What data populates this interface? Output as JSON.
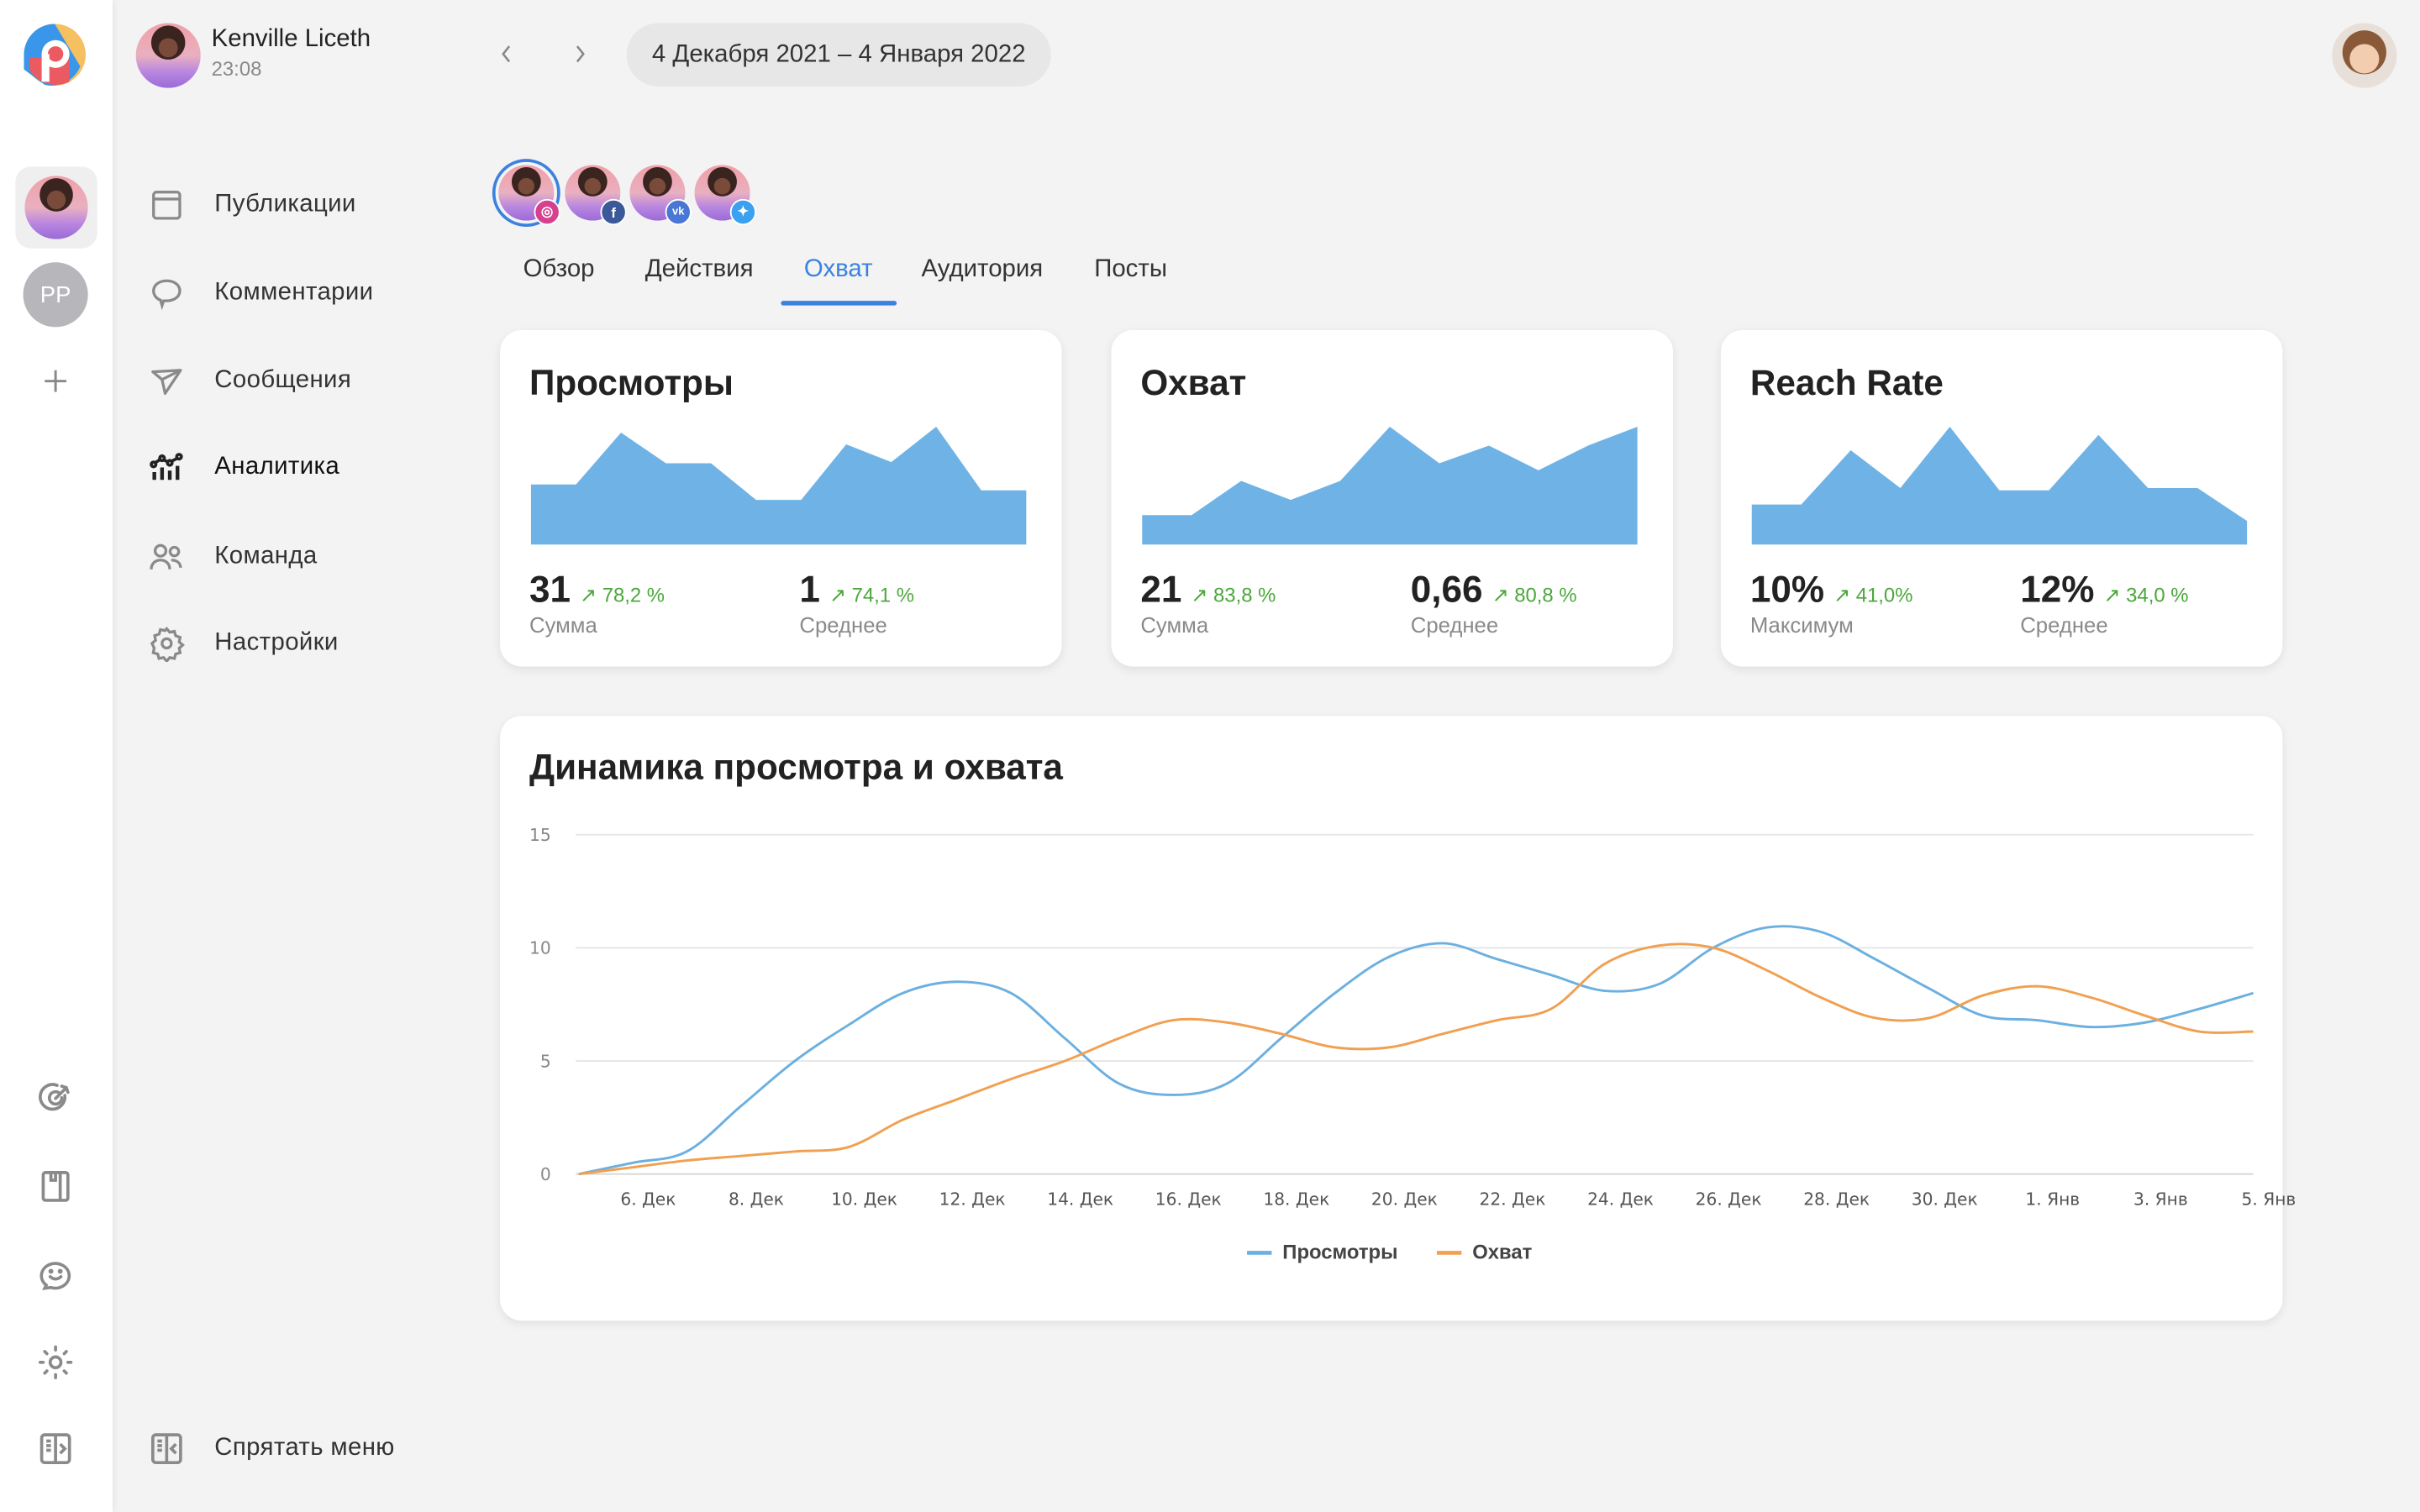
{
  "header": {
    "user_name": "Kenville Liceth",
    "time": "23:08",
    "date_range": "4 Декабря 2021 – 4 Января 2022"
  },
  "rail": {
    "accounts": [
      {
        "type": "avatar"
      },
      {
        "initials": "PP"
      }
    ],
    "bottom_icons": [
      "target-icon",
      "book-icon",
      "smile-chat-icon",
      "sun-icon",
      "expand-menu-icon"
    ]
  },
  "sidebar": {
    "items": [
      {
        "label": "Публикации",
        "icon": "calendar-window-icon"
      },
      {
        "label": "Комментарии",
        "icon": "comment-icon"
      },
      {
        "label": "Сообщения",
        "icon": "send-icon"
      },
      {
        "label": "Аналитика",
        "icon": "analytics-icon",
        "active": true
      },
      {
        "label": "Команда",
        "icon": "team-icon"
      },
      {
        "label": "Настройки",
        "icon": "gear-icon"
      }
    ],
    "hide_menu": "Спрятать меню"
  },
  "social_accounts": [
    {
      "network": "instagram",
      "color": "#d6408e",
      "selected": true
    },
    {
      "network": "facebook",
      "color": "#3b5998"
    },
    {
      "network": "vk",
      "color": "#4a76d6"
    },
    {
      "network": "twitter",
      "color": "#3aa0f0"
    }
  ],
  "tabs": [
    {
      "label": "Обзор"
    },
    {
      "label": "Действия"
    },
    {
      "label": "Охват",
      "active": true
    },
    {
      "label": "Аудитория"
    },
    {
      "label": "Посты"
    }
  ],
  "cards": [
    {
      "title": "Просмотры",
      "spark": [
        51,
        51,
        95,
        69,
        69,
        38,
        38,
        85,
        70,
        100,
        46,
        46
      ],
      "stats": [
        {
          "value": "31",
          "change": "↗ 78,2 %",
          "label": "Сумма"
        },
        {
          "value": "1",
          "change": "↗ 74,1 %",
          "label": "Среднее"
        }
      ]
    },
    {
      "title": "Охват",
      "spark": [
        25,
        25,
        54,
        38,
        54,
        100,
        69,
        84,
        63,
        84,
        100
      ],
      "stats": [
        {
          "value": "21",
          "change": "↗ 83,8 %",
          "label": "Сумма"
        },
        {
          "value": "0,66",
          "change": "↗ 80,8 %",
          "label": "Среднее"
        }
      ]
    },
    {
      "title": "Reach Rate",
      "spark": [
        34,
        34,
        80,
        48,
        100,
        46,
        46,
        93,
        48,
        48,
        20
      ],
      "stats": [
        {
          "value": "10%",
          "change": "↗ 41,0%",
          "label": "Максимум"
        },
        {
          "value": "12%",
          "change": "↗ 34,0 %",
          "label": "Среднее"
        }
      ]
    }
  ],
  "colors": {
    "accent": "#3b82e0",
    "sparkline": "#6fb3e6",
    "views": "#6cb0e0",
    "reach": "#f0a050",
    "positive": "#4aa83a"
  },
  "chart_data": {
    "type": "line",
    "title": "Динамика просмотра и охвата",
    "ylim": [
      0,
      15
    ],
    "yticks": [
      "0",
      "5",
      "10",
      "15"
    ],
    "grid": true,
    "legend": "bottom",
    "x": [
      "5 Дек",
      "6 Дек",
      "7 Дек",
      "8 Дек",
      "9 Дек",
      "10 Дек",
      "11 Дек",
      "12 Дек",
      "13 Дек",
      "14 Дек",
      "15 Дек",
      "16 Дек",
      "17 Дек",
      "18 Дек",
      "19 Дек",
      "20 Дек",
      "21 Дек",
      "22 Дек",
      "23 Дек",
      "24 Дек",
      "25 Дек",
      "26 Дек",
      "27 Дек",
      "28 Дек",
      "29 Дек",
      "30 Дек",
      "31 Дек",
      "1 Янв",
      "2 Янв",
      "3 Янв",
      "4 Янв",
      "5 Янв"
    ],
    "xtick_labels": [
      "6. Дек",
      "8. Дек",
      "10. Дек",
      "12. Дек",
      "14. Дек",
      "16. Дек",
      "18. Дек",
      "20. Дек",
      "22. Дек",
      "24. Дек",
      "26. Дек",
      "28. Дек",
      "30. Дек",
      "1. Янв",
      "3. Янв",
      "5. Янв"
    ],
    "series": [
      {
        "name": "Просмотры",
        "color": "#6cb0e0",
        "values": [
          0,
          0.5,
          1.0,
          3,
          5,
          6.6,
          8,
          8.5,
          8,
          6,
          4,
          3.5,
          4,
          6,
          8,
          9.6,
          10.2,
          9.5,
          8.8,
          8.1,
          8.4,
          10,
          10.9,
          10.7,
          9.5,
          8.2,
          7,
          6.8,
          6.5,
          6.7,
          7.3,
          8
        ]
      },
      {
        "name": "Охват",
        "color": "#f0a050",
        "values": [
          0,
          0.3,
          0.6,
          0.8,
          1,
          1.2,
          2.4,
          3.3,
          4.2,
          5,
          6,
          6.8,
          6.7,
          6.2,
          5.6,
          5.6,
          6.2,
          6.8,
          7.3,
          9.3,
          10.1,
          10.0,
          9.0,
          7.8,
          6.9,
          6.9,
          7.9,
          8.3,
          7.8,
          7,
          6.3,
          6.3
        ]
      }
    ]
  }
}
